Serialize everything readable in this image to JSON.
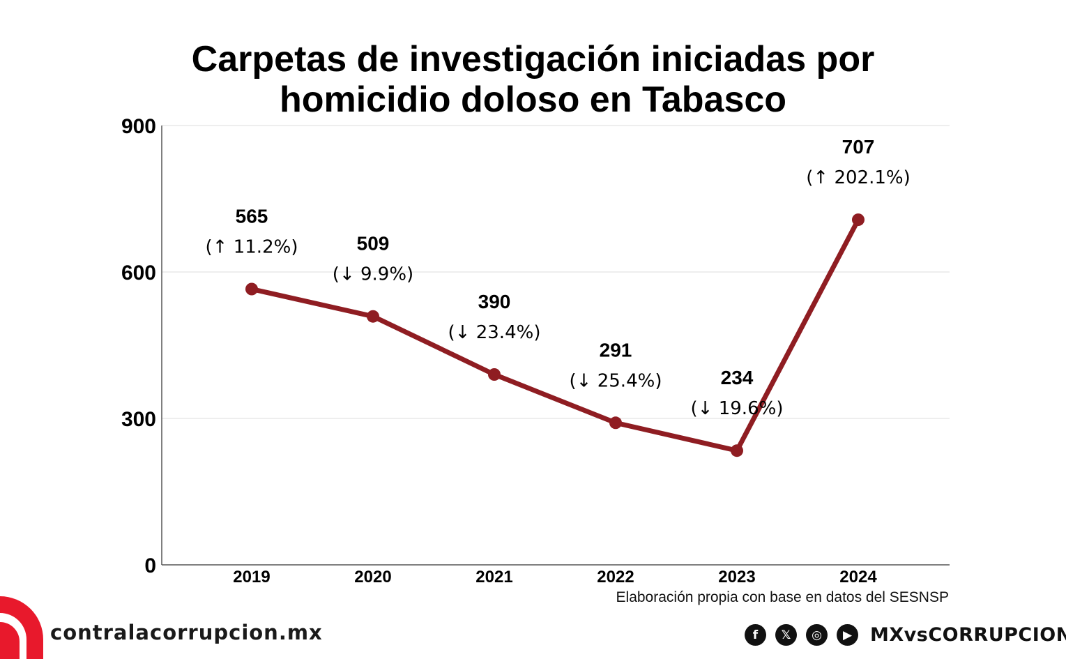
{
  "chart_data": {
    "type": "line",
    "title_lines": [
      "Carpetas de investigación iniciadas por",
      "homicidio doloso en Tabasco"
    ],
    "categories": [
      "2019",
      "2020",
      "2021",
      "2022",
      "2023",
      "2024"
    ],
    "values": [
      565,
      509,
      390,
      291,
      234,
      707
    ],
    "value_labels": [
      "565",
      "509",
      "390",
      "291",
      "234",
      "707"
    ],
    "change_labels": [
      "(↑ 11.2%)",
      "(↓ 9.9%)",
      "(↓ 23.4%)",
      "(↓ 25.4%)",
      "(↓ 19.6%)",
      "(↑ 202.1%)"
    ],
    "yticks": [
      0,
      300,
      600,
      900
    ],
    "ylim": [
      0,
      900
    ],
    "grid": true,
    "xlabel": "",
    "ylabel": "",
    "line_color": "#8f1d22"
  },
  "source_note": "Elaboración propia con base en datos del SESNSP",
  "footer": {
    "website": "contralacorrupcion.mx",
    "handle": "MXvsCORRUPCION",
    "brand_color": "#e8192c",
    "social_icons": [
      {
        "name": "facebook-icon",
        "glyph": "f"
      },
      {
        "name": "x-icon",
        "glyph": "𝕏"
      },
      {
        "name": "instagram-icon",
        "glyph": "◎"
      },
      {
        "name": "youtube-icon",
        "glyph": "▶"
      }
    ]
  }
}
